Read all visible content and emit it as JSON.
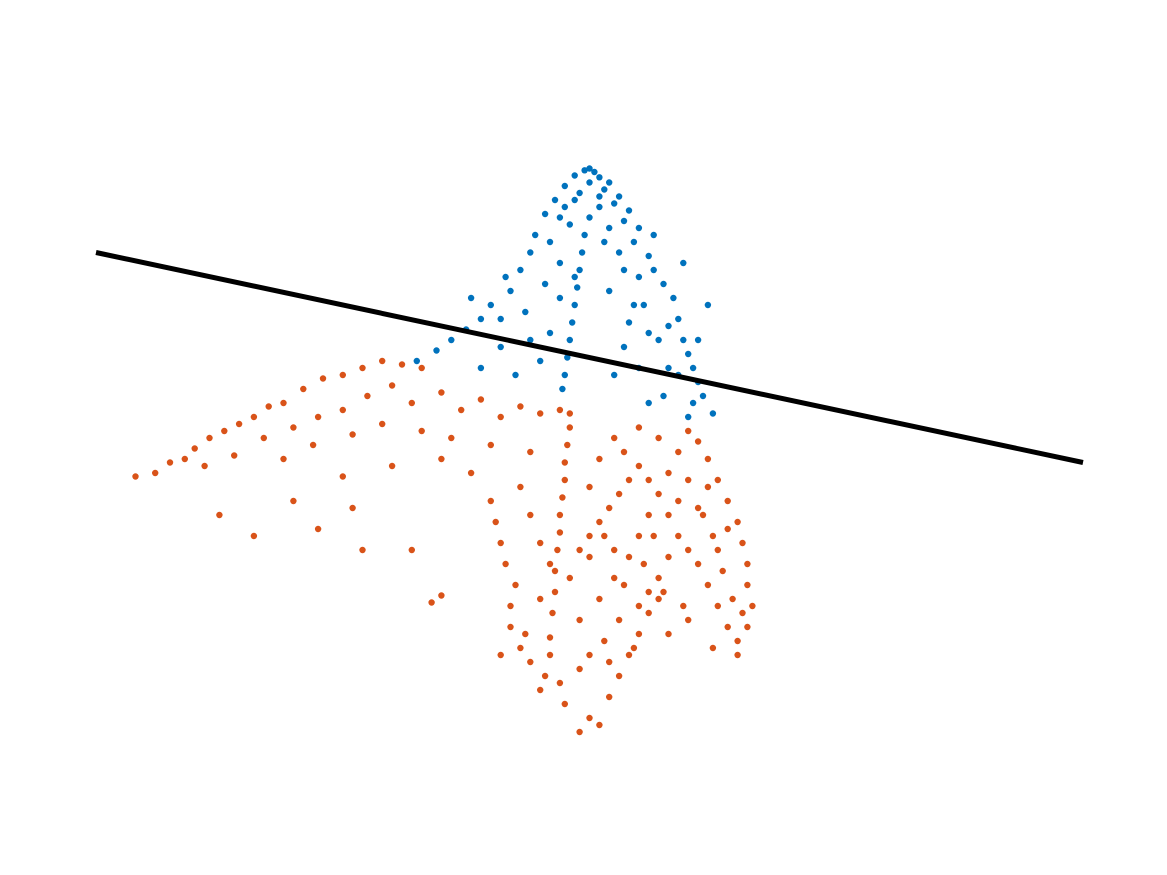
{
  "chart_data": {
    "type": "scatter",
    "title": "",
    "xlabel": "",
    "ylabel": "",
    "grid": false,
    "axes_visible": false,
    "xlim": [
      -1.0,
      1.0
    ],
    "ylim": [
      -1.0,
      1.0
    ],
    "colors": {
      "upper": "#0072BD",
      "lower": "#D95319",
      "line": "#000000"
    },
    "separating_line": {
      "x": [
        -1.0,
        1.0
      ],
      "y": [
        0.55,
        -0.05
      ]
    },
    "series": [
      {
        "color": "#0072BD",
        "points": [
          [
            0.0,
            0.79
          ],
          [
            -0.01,
            0.785
          ],
          [
            0.01,
            0.78
          ],
          [
            -0.03,
            0.77
          ],
          [
            0.02,
            0.765
          ],
          [
            0.04,
            0.75
          ],
          [
            -0.05,
            0.74
          ],
          [
            0.0,
            0.75
          ],
          [
            0.03,
            0.73
          ],
          [
            -0.02,
            0.72
          ],
          [
            0.06,
            0.71
          ],
          [
            -0.07,
            0.7
          ],
          [
            0.05,
            0.69
          ],
          [
            -0.03,
            0.7
          ],
          [
            0.02,
            0.71
          ],
          [
            0.08,
            0.67
          ],
          [
            -0.09,
            0.66
          ],
          [
            -0.06,
            0.65
          ],
          [
            0.07,
            0.64
          ],
          [
            0.1,
            0.62
          ],
          [
            -0.11,
            0.6
          ],
          [
            0.04,
            0.62
          ],
          [
            -0.04,
            0.63
          ],
          [
            0.09,
            0.58
          ],
          [
            -0.12,
            0.55
          ],
          [
            0.12,
            0.54
          ],
          [
            -0.14,
            0.5
          ],
          [
            0.13,
            0.5
          ],
          [
            0.15,
            0.46
          ],
          [
            -0.16,
            0.44
          ],
          [
            0.06,
            0.55
          ],
          [
            -0.06,
            0.52
          ],
          [
            0.1,
            0.48
          ],
          [
            -0.09,
            0.46
          ],
          [
            -0.2,
            0.4
          ],
          [
            0.17,
            0.42
          ],
          [
            -0.22,
            0.36
          ],
          [
            0.18,
            0.36
          ],
          [
            0.19,
            0.3
          ],
          [
            -0.25,
            0.33
          ],
          [
            0.11,
            0.4
          ],
          [
            -0.13,
            0.38
          ],
          [
            0.2,
            0.26
          ],
          [
            -0.28,
            0.3
          ],
          [
            0.21,
            0.22
          ],
          [
            -0.31,
            0.27
          ],
          [
            0.14,
            0.3
          ],
          [
            -0.18,
            0.28
          ],
          [
            0.22,
            0.18
          ],
          [
            -0.35,
            0.24
          ],
          [
            0.08,
            0.35
          ],
          [
            -0.08,
            0.32
          ],
          [
            0.23,
            0.14
          ],
          [
            0.16,
            0.22
          ],
          [
            -0.22,
            0.22
          ],
          [
            0.05,
            0.2
          ],
          [
            -0.01,
            0.6
          ],
          [
            -0.015,
            0.55
          ],
          [
            -0.02,
            0.5
          ],
          [
            -0.025,
            0.45
          ],
          [
            -0.03,
            0.4
          ],
          [
            -0.035,
            0.35
          ],
          [
            -0.04,
            0.3
          ],
          [
            -0.045,
            0.25
          ],
          [
            -0.05,
            0.2
          ],
          [
            -0.055,
            0.16
          ],
          [
            0.1,
            0.22
          ],
          [
            0.18,
            0.2
          ],
          [
            0.21,
            0.12
          ],
          [
            0.12,
            0.12
          ],
          [
            0.25,
            0.09
          ],
          [
            -0.15,
            0.2
          ],
          [
            0.0,
            0.65
          ],
          [
            0.03,
            0.58
          ],
          [
            -0.08,
            0.58
          ],
          [
            0.13,
            0.6
          ],
          [
            -0.17,
            0.48
          ],
          [
            0.19,
            0.52
          ],
          [
            -0.24,
            0.42
          ],
          [
            0.24,
            0.4
          ],
          [
            0.16,
            0.34
          ],
          [
            -0.12,
            0.3
          ],
          [
            0.04,
            0.44
          ],
          [
            -0.06,
            0.42
          ],
          [
            0.15,
            0.14
          ],
          [
            0.07,
            0.28
          ],
          [
            -0.1,
            0.24
          ],
          [
            0.2,
            0.08
          ],
          [
            0.02,
            0.68
          ],
          [
            -0.05,
            0.68
          ],
          [
            0.07,
            0.5
          ],
          [
            -0.03,
            0.48
          ],
          [
            0.09,
            0.4
          ],
          [
            0.12,
            0.32
          ],
          [
            -0.18,
            0.36
          ],
          [
            0.22,
            0.3
          ]
        ]
      },
      {
        "color": "#D95319",
        "points": [
          [
            -0.92,
            -0.09
          ],
          [
            -0.88,
            -0.08
          ],
          [
            -0.85,
            -0.05
          ],
          [
            -0.82,
            -0.04
          ],
          [
            -0.8,
            -0.01
          ],
          [
            -0.77,
            0.02
          ],
          [
            -0.74,
            0.04
          ],
          [
            -0.71,
            0.06
          ],
          [
            -0.68,
            0.08
          ],
          [
            -0.65,
            0.11
          ],
          [
            -0.62,
            0.12
          ],
          [
            -0.58,
            0.16
          ],
          [
            -0.54,
            0.19
          ],
          [
            -0.5,
            0.2
          ],
          [
            -0.46,
            0.22
          ],
          [
            -0.42,
            0.24
          ],
          [
            -0.38,
            0.23
          ],
          [
            -0.34,
            0.22
          ],
          [
            -0.78,
            -0.06
          ],
          [
            -0.72,
            -0.03
          ],
          [
            -0.66,
            0.02
          ],
          [
            -0.6,
            0.05
          ],
          [
            -0.55,
            0.08
          ],
          [
            -0.5,
            0.1
          ],
          [
            -0.45,
            0.14
          ],
          [
            -0.4,
            0.17
          ],
          [
            -0.36,
            0.12
          ],
          [
            -0.3,
            0.15
          ],
          [
            -0.26,
            0.1
          ],
          [
            -0.22,
            0.13
          ],
          [
            -0.18,
            0.08
          ],
          [
            -0.14,
            0.11
          ],
          [
            -0.1,
            0.09
          ],
          [
            -0.06,
            0.1
          ],
          [
            -0.62,
            -0.04
          ],
          [
            -0.56,
            0.0
          ],
          [
            -0.48,
            0.03
          ],
          [
            -0.42,
            0.06
          ],
          [
            -0.34,
            0.04
          ],
          [
            -0.28,
            0.02
          ],
          [
            -0.2,
            0.0
          ],
          [
            -0.12,
            -0.02
          ],
          [
            -0.75,
            -0.2
          ],
          [
            -0.68,
            -0.26
          ],
          [
            -0.6,
            -0.16
          ],
          [
            -0.55,
            -0.24
          ],
          [
            -0.48,
            -0.18
          ],
          [
            -0.46,
            -0.3
          ],
          [
            -0.36,
            -0.3
          ],
          [
            -0.32,
            -0.45
          ],
          [
            -0.3,
            -0.43
          ],
          [
            -0.5,
            -0.09
          ],
          [
            -0.4,
            -0.06
          ],
          [
            -0.3,
            -0.04
          ],
          [
            -0.24,
            -0.08
          ],
          [
            -0.04,
            0.09
          ],
          [
            -0.04,
            0.05
          ],
          [
            -0.045,
            0.0
          ],
          [
            -0.05,
            -0.05
          ],
          [
            -0.05,
            -0.1
          ],
          [
            -0.055,
            -0.15
          ],
          [
            -0.06,
            -0.2
          ],
          [
            -0.06,
            -0.25
          ],
          [
            -0.065,
            -0.3
          ],
          [
            -0.07,
            -0.36
          ],
          [
            -0.07,
            -0.42
          ],
          [
            -0.075,
            -0.48
          ],
          [
            -0.08,
            -0.55
          ],
          [
            -0.08,
            -0.6
          ],
          [
            -0.09,
            -0.66
          ],
          [
            -0.1,
            -0.7
          ],
          [
            -0.05,
            -0.74
          ],
          [
            0.0,
            -0.78
          ],
          [
            0.02,
            -0.8
          ],
          [
            -0.02,
            -0.82
          ],
          [
            0.04,
            -0.72
          ],
          [
            0.06,
            -0.66
          ],
          [
            0.08,
            -0.6
          ],
          [
            0.1,
            -0.54
          ],
          [
            0.12,
            -0.48
          ],
          [
            0.14,
            -0.44
          ],
          [
            -0.15,
            -0.4
          ],
          [
            -0.17,
            -0.34
          ],
          [
            -0.18,
            -0.28
          ],
          [
            -0.19,
            -0.22
          ],
          [
            -0.2,
            -0.16
          ],
          [
            -0.14,
            -0.12
          ],
          [
            -0.12,
            -0.2
          ],
          [
            -0.16,
            -0.46
          ],
          [
            -0.13,
            -0.54
          ],
          [
            -0.12,
            -0.62
          ],
          [
            -0.02,
            -0.5
          ],
          [
            0.02,
            -0.44
          ],
          [
            0.05,
            -0.38
          ],
          [
            0.08,
            -0.32
          ],
          [
            0.1,
            -0.26
          ],
          [
            0.12,
            -0.2
          ],
          [
            0.14,
            -0.14
          ],
          [
            0.16,
            -0.08
          ],
          [
            0.18,
            -0.02
          ],
          [
            0.2,
            0.04
          ],
          [
            0.22,
            0.01
          ],
          [
            0.24,
            -0.04
          ],
          [
            0.26,
            -0.1
          ],
          [
            0.28,
            -0.16
          ],
          [
            0.3,
            -0.22
          ],
          [
            0.31,
            -0.28
          ],
          [
            0.32,
            -0.34
          ],
          [
            0.32,
            -0.4
          ],
          [
            0.33,
            -0.46
          ],
          [
            0.32,
            -0.52
          ],
          [
            0.3,
            -0.56
          ],
          [
            0.28,
            -0.52
          ],
          [
            0.26,
            -0.46
          ],
          [
            0.24,
            -0.4
          ],
          [
            0.22,
            -0.34
          ],
          [
            0.2,
            -0.3
          ],
          [
            0.18,
            -0.26
          ],
          [
            0.16,
            -0.32
          ],
          [
            0.14,
            -0.38
          ],
          [
            0.12,
            -0.42
          ],
          [
            0.1,
            -0.46
          ],
          [
            0.06,
            -0.5
          ],
          [
            0.03,
            -0.56
          ],
          [
            0.0,
            -0.6
          ],
          [
            -0.02,
            -0.64
          ],
          [
            0.04,
            -0.62
          ],
          [
            0.09,
            -0.58
          ],
          [
            0.16,
            -0.54
          ],
          [
            0.2,
            -0.5
          ],
          [
            0.25,
            -0.58
          ],
          [
            0.3,
            -0.6
          ],
          [
            0.28,
            -0.24
          ],
          [
            0.26,
            -0.3
          ],
          [
            0.24,
            -0.12
          ],
          [
            0.22,
            -0.18
          ],
          [
            0.2,
            -0.1
          ],
          [
            0.18,
            -0.16
          ],
          [
            0.16,
            -0.2
          ],
          [
            0.1,
            -0.06
          ],
          [
            0.08,
            -0.1
          ],
          [
            0.06,
            -0.14
          ],
          [
            0.04,
            -0.18
          ],
          [
            0.02,
            -0.22
          ],
          [
            0.0,
            -0.26
          ],
          [
            -0.02,
            -0.3
          ],
          [
            0.05,
            0.02
          ],
          [
            0.1,
            0.05
          ],
          [
            0.14,
            0.02
          ],
          [
            0.07,
            -0.02
          ],
          [
            0.02,
            -0.04
          ],
          [
            0.12,
            -0.1
          ],
          [
            0.0,
            -0.12
          ],
          [
            -0.1,
            -0.28
          ],
          [
            -0.08,
            -0.34
          ],
          [
            -0.1,
            -0.44
          ],
          [
            0.05,
            -0.3
          ],
          [
            0.15,
            -0.42
          ],
          [
            0.19,
            -0.46
          ],
          [
            0.27,
            -0.36
          ],
          [
            0.29,
            -0.44
          ],
          [
            0.31,
            -0.48
          ],
          [
            0.25,
            -0.26
          ],
          [
            0.23,
            -0.2
          ],
          [
            0.13,
            -0.26
          ],
          [
            0.11,
            -0.34
          ],
          [
            0.07,
            -0.4
          ],
          [
            -0.04,
            -0.38
          ],
          [
            0.0,
            -0.32
          ],
          [
            0.03,
            -0.26
          ],
          [
            -0.16,
            -0.52
          ],
          [
            -0.14,
            -0.58
          ],
          [
            -0.18,
            -0.6
          ],
          [
            -0.06,
            -0.68
          ]
        ]
      }
    ]
  }
}
